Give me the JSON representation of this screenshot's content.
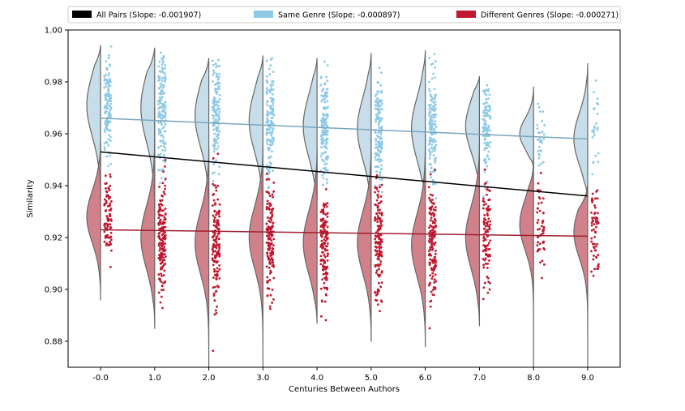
{
  "chart_data": {
    "type": "scatter",
    "subtype": "split violin + jittered strip + regression lines",
    "title": "",
    "xlabel": "Centuries Between Authors",
    "ylabel": "Similarity",
    "x_tick_labels": [
      "-0.0",
      "1.0",
      "2.0",
      "3.0",
      "4.0",
      "5.0",
      "6.0",
      "7.0",
      "8.0",
      "9.0"
    ],
    "y_ticks": [
      "0.88",
      "0.90",
      "0.92",
      "0.94",
      "0.96",
      "0.98",
      "1.00"
    ],
    "ylim": [
      0.87,
      1.0
    ],
    "xlim": [
      -0.6,
      9.6
    ],
    "grid": false,
    "legend": {
      "placement": "top",
      "entries": [
        {
          "label": "All Pairs (Slope: -0.001907)",
          "color": "#000000"
        },
        {
          "label": "Same Genre (Slope: -0.000897)",
          "color": "#8ecae6"
        },
        {
          "label": "Different Genres (Slope: -0.000271)",
          "color": "#c0182e"
        }
      ]
    },
    "regression_lines": [
      {
        "series": "All Pairs",
        "color": "#000000",
        "x": [
          0,
          9
        ],
        "y": [
          0.953,
          0.936
        ]
      },
      {
        "series": "Same Genre",
        "color": "#7aa5bd",
        "x": [
          0,
          9
        ],
        "y": [
          0.966,
          0.958
        ]
      },
      {
        "series": "Different Genres",
        "color": "#a02030",
        "x": [
          0,
          9
        ],
        "y": [
          0.923,
          0.9205
        ]
      }
    ],
    "groups": [
      {
        "x": 0,
        "same": {
          "min": 0.935,
          "max": 0.994,
          "median": 0.971,
          "spread": 0.012,
          "points": 130,
          "pmin": 0.934,
          "pmax": 0.994
        },
        "diff": {
          "min": 0.896,
          "max": 0.957,
          "median": 0.928,
          "spread": 0.01,
          "points": 90,
          "pmin": 0.896,
          "pmax": 0.946
        }
      },
      {
        "x": 1,
        "same": {
          "min": 0.92,
          "max": 0.993,
          "median": 0.97,
          "spread": 0.013,
          "points": 160,
          "pmin": 0.918,
          "pmax": 0.993
        },
        "diff": {
          "min": 0.885,
          "max": 0.97,
          "median": 0.92,
          "spread": 0.012,
          "points": 170,
          "pmin": 0.885,
          "pmax": 0.97
        }
      },
      {
        "x": 2,
        "same": {
          "min": 0.925,
          "max": 0.989,
          "median": 0.967,
          "spread": 0.012,
          "points": 150,
          "pmin": 0.925,
          "pmax": 0.989
        },
        "diff": {
          "min": 0.87,
          "max": 0.955,
          "median": 0.918,
          "spread": 0.012,
          "points": 150,
          "pmin": 0.874,
          "pmax": 0.955
        }
      },
      {
        "x": 3,
        "same": {
          "min": 0.93,
          "max": 0.99,
          "median": 0.965,
          "spread": 0.012,
          "points": 140,
          "pmin": 0.93,
          "pmax": 0.99
        },
        "diff": {
          "min": 0.87,
          "max": 0.955,
          "median": 0.92,
          "spread": 0.012,
          "points": 150,
          "pmin": 0.878,
          "pmax": 0.955
        }
      },
      {
        "x": 4,
        "same": {
          "min": 0.935,
          "max": 0.989,
          "median": 0.963,
          "spread": 0.012,
          "points": 150,
          "pmin": 0.935,
          "pmax": 0.989
        },
        "diff": {
          "min": 0.887,
          "max": 0.954,
          "median": 0.918,
          "spread": 0.012,
          "points": 150,
          "pmin": 0.888,
          "pmax": 0.95
        }
      },
      {
        "x": 5,
        "same": {
          "min": 0.932,
          "max": 0.991,
          "median": 0.962,
          "spread": 0.012,
          "points": 150,
          "pmin": 0.932,
          "pmax": 0.991
        },
        "diff": {
          "min": 0.88,
          "max": 0.958,
          "median": 0.918,
          "spread": 0.012,
          "points": 150,
          "pmin": 0.882,
          "pmax": 0.958
        }
      },
      {
        "x": 6,
        "same": {
          "min": 0.936,
          "max": 0.992,
          "median": 0.962,
          "spread": 0.012,
          "points": 150,
          "pmin": 0.934,
          "pmax": 0.992
        },
        "diff": {
          "min": 0.878,
          "max": 0.96,
          "median": 0.917,
          "spread": 0.012,
          "points": 140,
          "pmin": 0.878,
          "pmax": 0.96
        }
      },
      {
        "x": 7,
        "same": {
          "min": 0.94,
          "max": 0.982,
          "median": 0.963,
          "spread": 0.01,
          "points": 110,
          "pmin": 0.935,
          "pmax": 0.982
        },
        "diff": {
          "min": 0.886,
          "max": 0.956,
          "median": 0.92,
          "spread": 0.012,
          "points": 100,
          "pmin": 0.886,
          "pmax": 0.951
        }
      },
      {
        "x": 8,
        "same": {
          "min": 0.947,
          "max": 0.978,
          "median": 0.96,
          "spread": 0.006,
          "points": 30,
          "pmin": 0.93,
          "pmax": 0.978
        },
        "diff": {
          "min": 0.87,
          "max": 0.95,
          "median": 0.925,
          "spread": 0.01,
          "points": 50,
          "pmin": 0.872,
          "pmax": 0.95
        }
      },
      {
        "x": 9,
        "same": {
          "min": 0.935,
          "max": 0.987,
          "median": 0.958,
          "spread": 0.01,
          "points": 25,
          "pmin": 0.93,
          "pmax": 0.987
        },
        "diff": {
          "min": 0.87,
          "max": 0.94,
          "median": 0.922,
          "spread": 0.01,
          "points": 60,
          "pmin": 0.877,
          "pmax": 0.939
        }
      }
    ],
    "colors": {
      "same_violin_fill": "#bdd8e6",
      "diff_violin_fill": "#c96b75",
      "violin_edge": "#666666",
      "same_points": "#8ecae6",
      "diff_points": "#c0182e"
    }
  }
}
